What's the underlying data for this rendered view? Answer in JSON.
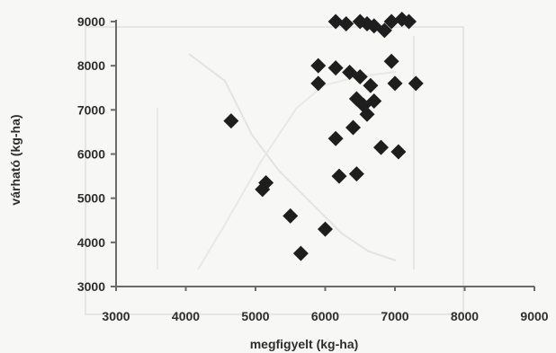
{
  "chart_data": {
    "type": "scatter",
    "title": "",
    "xlabel": "megfigyelt (kg-ha)",
    "ylabel": "várható (kg-ha)",
    "xlim": [
      3000,
      9000
    ],
    "ylim": [
      3000,
      9000
    ],
    "x_ticks": [
      "3000",
      "4000",
      "5000",
      "6000",
      "7000",
      "8000",
      "9000"
    ],
    "y_ticks": [
      "3000",
      "4000",
      "5000",
      "6000",
      "7000",
      "8000",
      "9000"
    ],
    "grid": false,
    "legend": "none",
    "marker": "diamond",
    "marker_color": "#1e1e1e",
    "axis_color": "#6a6a6a",
    "points": [
      {
        "x": 4650,
        "y": 6750
      },
      {
        "x": 5100,
        "y": 5200
      },
      {
        "x": 5150,
        "y": 5350
      },
      {
        "x": 5500,
        "y": 4600
      },
      {
        "x": 5650,
        "y": 3750
      },
      {
        "x": 5900,
        "y": 8000
      },
      {
        "x": 5900,
        "y": 7600
      },
      {
        "x": 6000,
        "y": 4300
      },
      {
        "x": 6150,
        "y": 9000
      },
      {
        "x": 6150,
        "y": 7950
      },
      {
        "x": 6150,
        "y": 6350
      },
      {
        "x": 6200,
        "y": 5500
      },
      {
        "x": 6300,
        "y": 8950
      },
      {
        "x": 6350,
        "y": 7850
      },
      {
        "x": 6400,
        "y": 6600
      },
      {
        "x": 6450,
        "y": 5550
      },
      {
        "x": 6450,
        "y": 7250
      },
      {
        "x": 6500,
        "y": 7750
      },
      {
        "x": 6500,
        "y": 9000
      },
      {
        "x": 6550,
        "y": 7100
      },
      {
        "x": 6600,
        "y": 8950
      },
      {
        "x": 6600,
        "y": 6900
      },
      {
        "x": 6650,
        "y": 7550
      },
      {
        "x": 6700,
        "y": 7200
      },
      {
        "x": 6700,
        "y": 8900
      },
      {
        "x": 6800,
        "y": 6150
      },
      {
        "x": 6850,
        "y": 8800
      },
      {
        "x": 6950,
        "y": 9000
      },
      {
        "x": 6950,
        "y": 8100
      },
      {
        "x": 7000,
        "y": 7600
      },
      {
        "x": 7050,
        "y": 6050
      },
      {
        "x": 7100,
        "y": 9050
      },
      {
        "x": 7200,
        "y": 9000
      },
      {
        "x": 7300,
        "y": 7600
      }
    ]
  }
}
